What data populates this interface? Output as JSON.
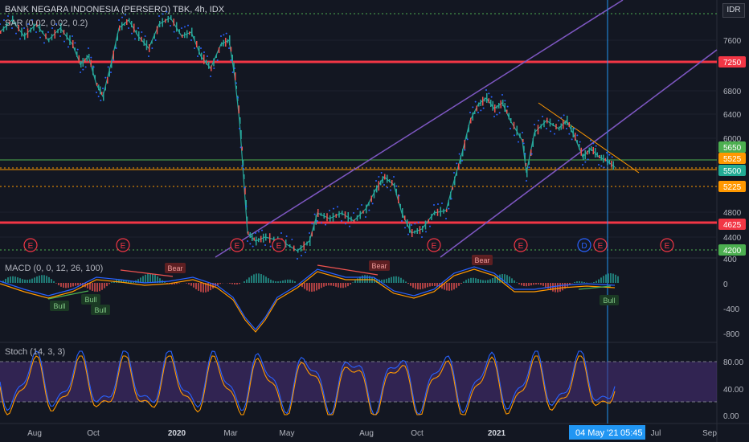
{
  "header": {
    "title": "BANK NEGARA INDONESIA (PERSERO) TBK, 4h, IDX",
    "sar_label": "SAR (0.02, 0.02, 0.2)",
    "currency": "IDR"
  },
  "price_axis": {
    "ticks": [
      "7600",
      "6800",
      "6400",
      "6000",
      "4800",
      "4400"
    ],
    "level_labels": [
      {
        "text": "7250",
        "color": "#f23645"
      },
      {
        "text": "5650",
        "color": "#4caf50"
      },
      {
        "text": "5525",
        "color": "#ff9800"
      },
      {
        "text": "5500",
        "color": "#22ab94"
      },
      {
        "text": "5225",
        "color": "#ff9800"
      },
      {
        "text": "4625",
        "color": "#f23645"
      },
      {
        "text": "4200",
        "color": "#4caf50"
      }
    ]
  },
  "events": {
    "marker_E": "E",
    "marker_D": "D"
  },
  "macd": {
    "label": "MACD (0, 0, 12, 26, 100)",
    "ticks": [
      "400",
      "0",
      "-400",
      "-800"
    ],
    "bear_labels": [
      "Bear",
      "Bear",
      "Bear"
    ],
    "bull_labels": [
      "Bull",
      "Bull",
      "Bull",
      "Bull"
    ]
  },
  "stoch": {
    "label": "Stoch (14, 3, 3)",
    "ticks": [
      "80.00",
      "40.00",
      "0.00"
    ]
  },
  "time_axis": {
    "labels": [
      "Aug",
      "Oct",
      "2020",
      "Mar",
      "May",
      "Aug",
      "Oct",
      "2021",
      "Jul",
      "Sep"
    ],
    "cursor_date": "04 May '21",
    "cursor_time": "05:45"
  },
  "colors": {
    "background": "#131722",
    "price": "#26a69a",
    "down": "#ef5350",
    "sar": "#2962ff",
    "channel": "#7e57c2",
    "support_red": "#f23645",
    "support_green": "#4caf50",
    "support_orange": "#ff9800",
    "stoch_band": "#4a2f7a",
    "cursor": "#2196f3"
  }
}
